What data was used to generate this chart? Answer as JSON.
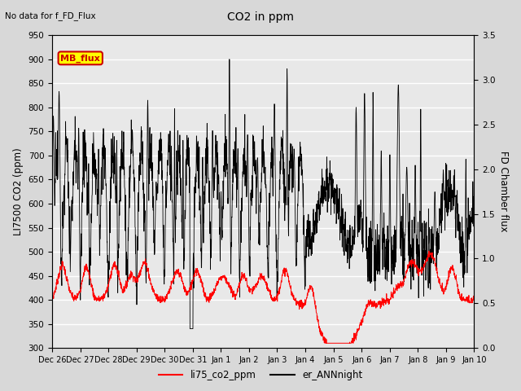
{
  "title": "CO2 in ppm",
  "subtitle": "No data for f_FD_Flux",
  "ylabel_left": "LI7500 CO2 (ppm)",
  "ylabel_right": "FD Chamber flux",
  "ylim_left": [
    300,
    950
  ],
  "ylim_right": [
    0.0,
    3.5
  ],
  "yticks_left": [
    300,
    350,
    400,
    450,
    500,
    550,
    600,
    650,
    700,
    750,
    800,
    850,
    900,
    950
  ],
  "yticks_right": [
    0.0,
    0.5,
    1.0,
    1.5,
    2.0,
    2.5,
    3.0,
    3.5
  ],
  "xtick_labels": [
    "Dec 26",
    "Dec 27",
    "Dec 28",
    "Dec 29",
    "Dec 30",
    "Dec 31",
    "Jan 1",
    "Jan 2",
    "Jan 3",
    "Jan 4",
    "Jan 5",
    "Jan 6",
    "Jan 7",
    "Jan 8",
    "Jan 9",
    "Jan 10"
  ],
  "legend_entries": [
    "li75_co2_ppm",
    "er_ANNnight"
  ],
  "line_color_red": "#ff0000",
  "line_color_black": "#000000",
  "mb_flux_box_color": "#ffff00",
  "mb_flux_text_color": "#cc0000",
  "mb_flux_box_edge": "#cc0000",
  "background_color": "#d8d8d8",
  "plot_bg_color": "#e8e8e8",
  "grid_color": "#ffffff",
  "n_points": 2000
}
